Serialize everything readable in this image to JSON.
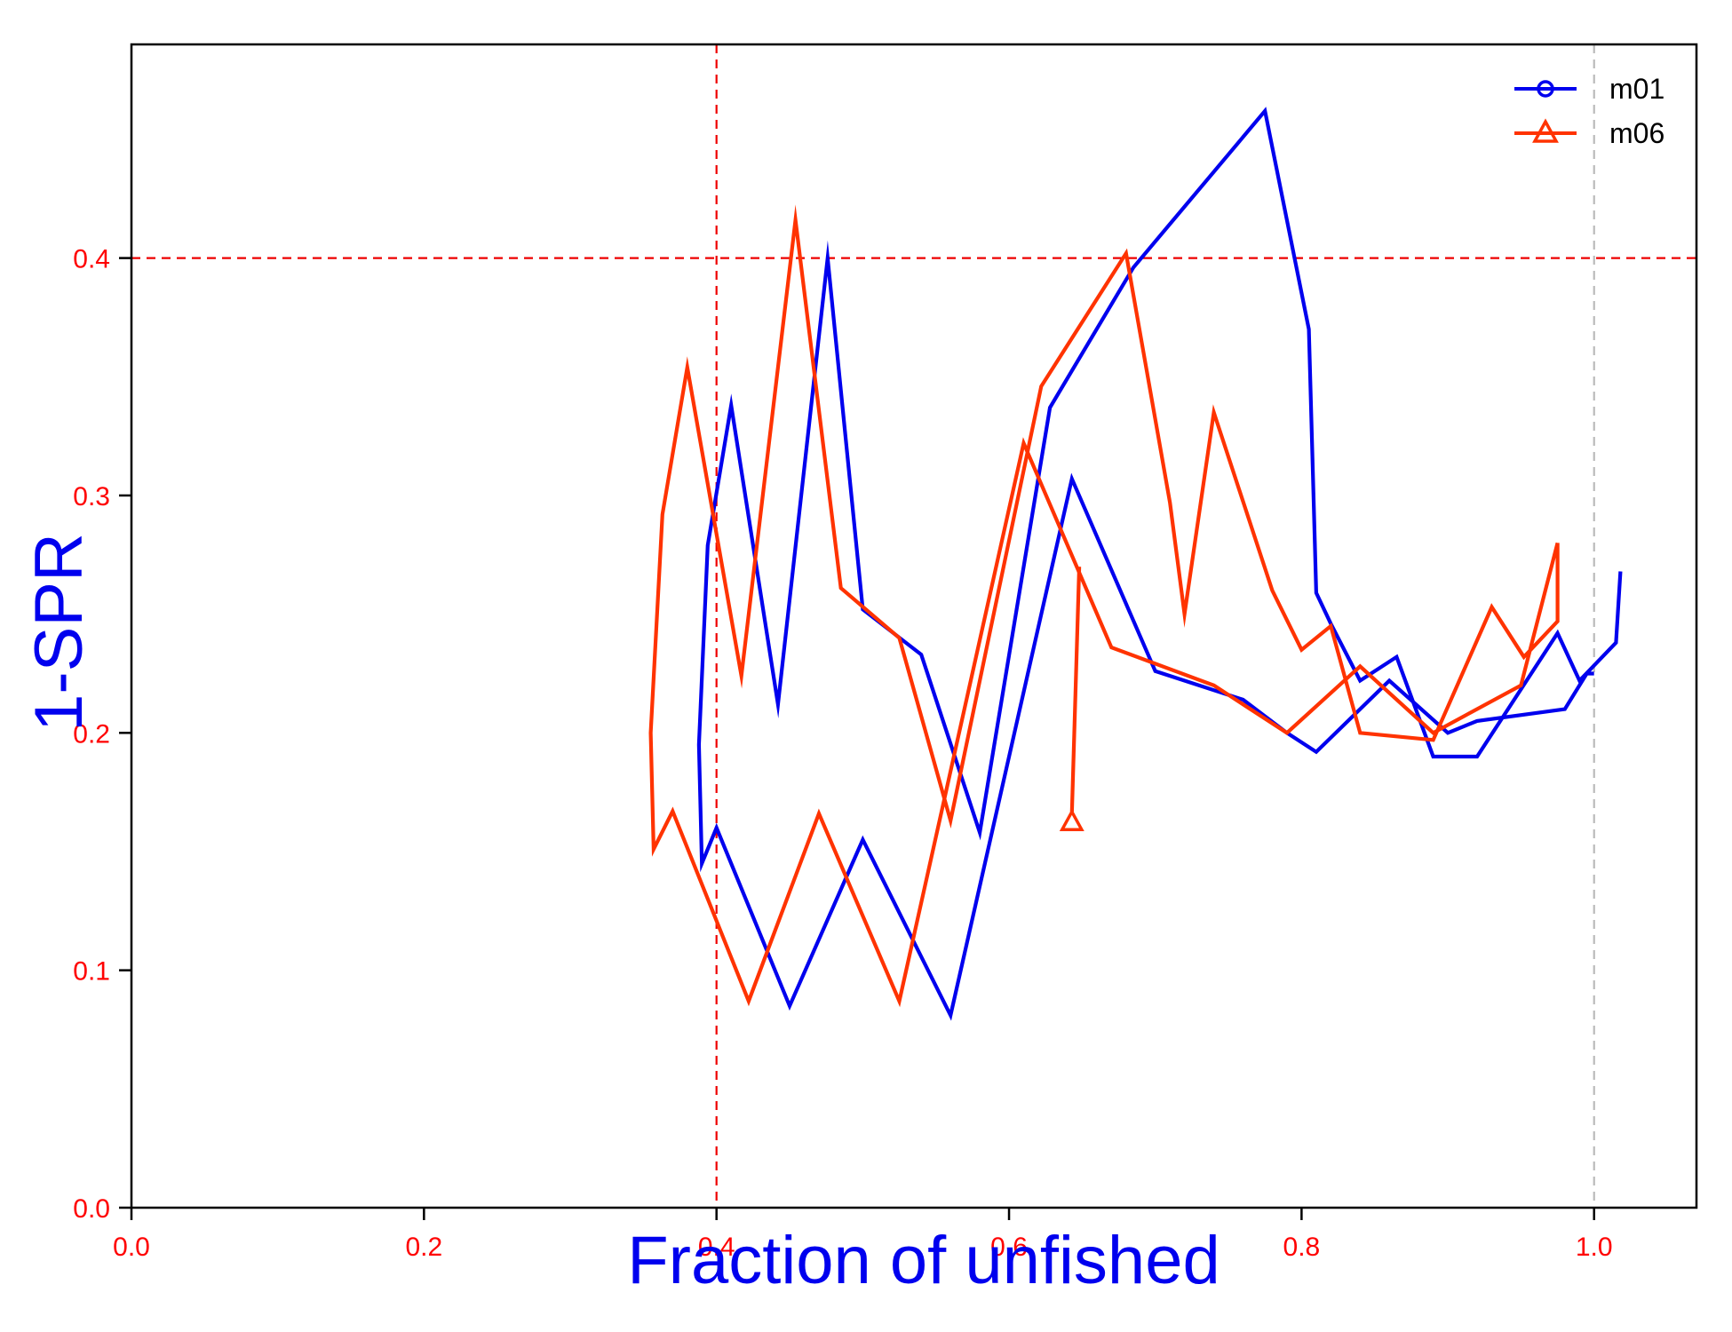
{
  "chart_data": {
    "type": "line",
    "title": "",
    "xlabel": "Fraction of unfished",
    "ylabel": "1-SPR",
    "xlim": [
      0,
      1.07
    ],
    "ylim": [
      0,
      0.49
    ],
    "x_ticks": [
      "0.0",
      "0.2",
      "0.4",
      "0.6",
      "0.8",
      "1.0"
    ],
    "y_ticks": [
      "0.0",
      "0.1",
      "0.2",
      "0.3",
      "0.4"
    ],
    "reference_lines": {
      "vertical": [
        0.4,
        1.0
      ],
      "horizontal": [
        0.4
      ]
    },
    "legend_position": "top-right",
    "grid": false,
    "colors": {
      "m01": "#0000ee",
      "m06": "#ff3300",
      "tick_labels": "#ff0000",
      "axis_titles": "#0000ee",
      "target_lines": "#ee0000",
      "unfished_line": "#bbbbbb"
    },
    "series": [
      {
        "name": "m01",
        "marker": "circle",
        "points": [
          [
            1.018,
            0.268
          ],
          [
            1.015,
            0.238
          ],
          [
            0.99,
            0.222
          ],
          [
            0.975,
            0.242
          ],
          [
            0.92,
            0.19
          ],
          [
            0.89,
            0.19
          ],
          [
            0.865,
            0.232
          ],
          [
            0.84,
            0.222
          ],
          [
            0.82,
            0.246
          ],
          [
            0.81,
            0.259
          ],
          [
            0.805,
            0.37
          ],
          [
            0.775,
            0.462
          ],
          [
            0.685,
            0.396
          ],
          [
            0.628,
            0.337
          ],
          [
            0.58,
            0.158
          ],
          [
            0.54,
            0.233
          ],
          [
            0.5,
            0.252
          ],
          [
            0.476,
            0.4
          ],
          [
            0.442,
            0.212
          ],
          [
            0.41,
            0.338
          ],
          [
            0.394,
            0.279
          ],
          [
            0.388,
            0.195
          ],
          [
            0.39,
            0.145
          ],
          [
            0.4,
            0.16
          ],
          [
            0.45,
            0.085
          ],
          [
            0.5,
            0.155
          ],
          [
            0.56,
            0.081
          ],
          [
            0.643,
            0.307
          ],
          [
            0.7,
            0.226
          ],
          [
            0.76,
            0.214
          ],
          [
            0.79,
            0.2
          ],
          [
            0.81,
            0.192
          ],
          [
            0.86,
            0.222
          ],
          [
            0.9,
            0.2
          ],
          [
            0.92,
            0.205
          ],
          [
            0.98,
            0.21
          ],
          [
            0.995,
            0.225
          ],
          [
            1.0,
            0.225
          ]
        ]
      },
      {
        "name": "m06",
        "marker": "triangle",
        "points": [
          [
            0.975,
            0.28
          ],
          [
            0.975,
            0.247
          ],
          [
            0.952,
            0.232
          ],
          [
            0.93,
            0.253
          ],
          [
            0.89,
            0.197
          ],
          [
            0.84,
            0.2
          ],
          [
            0.82,
            0.245
          ],
          [
            0.8,
            0.235
          ],
          [
            0.78,
            0.26
          ],
          [
            0.74,
            0.335
          ],
          [
            0.72,
            0.25
          ],
          [
            0.71,
            0.297
          ],
          [
            0.68,
            0.402
          ],
          [
            0.622,
            0.346
          ],
          [
            0.56,
            0.163
          ],
          [
            0.525,
            0.24
          ],
          [
            0.485,
            0.261
          ],
          [
            0.454,
            0.416
          ],
          [
            0.417,
            0.224
          ],
          [
            0.38,
            0.354
          ],
          [
            0.363,
            0.292
          ],
          [
            0.355,
            0.2
          ],
          [
            0.357,
            0.151
          ],
          [
            0.37,
            0.167
          ],
          [
            0.422,
            0.087
          ],
          [
            0.47,
            0.166
          ],
          [
            0.525,
            0.087
          ],
          [
            0.61,
            0.322
          ],
          [
            0.67,
            0.236
          ],
          [
            0.74,
            0.22
          ],
          [
            0.79,
            0.2
          ],
          [
            0.84,
            0.228
          ],
          [
            0.89,
            0.2
          ],
          [
            0.95,
            0.22
          ],
          [
            0.975,
            0.28
          ]
        ]
      }
    ]
  },
  "legend": {
    "items": [
      {
        "label": "m01"
      },
      {
        "label": "m06"
      }
    ]
  }
}
